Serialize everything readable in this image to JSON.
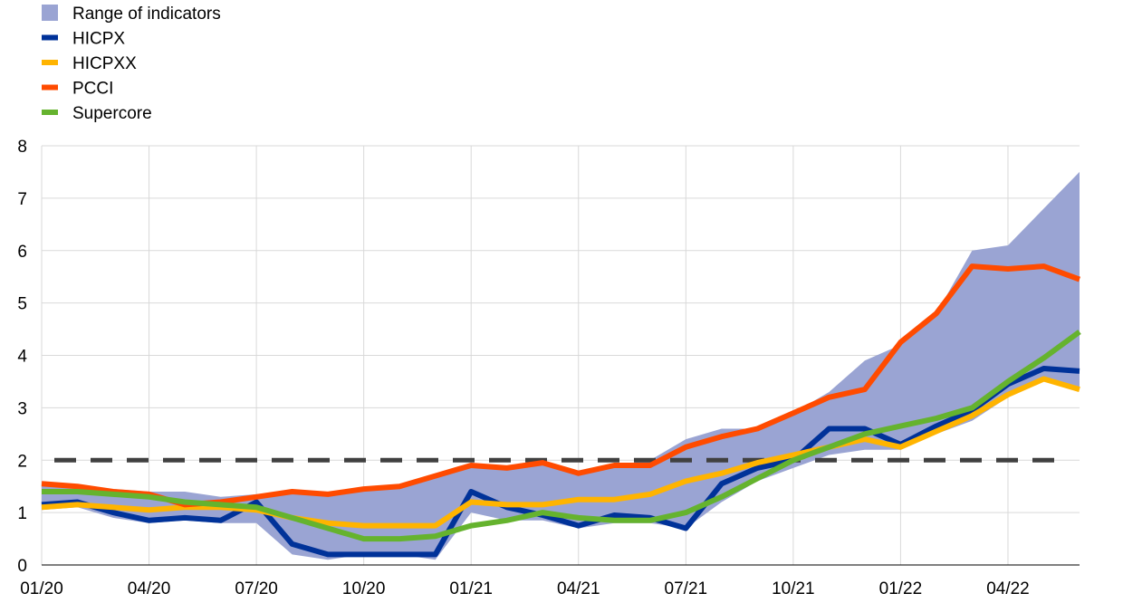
{
  "chart_data": {
    "type": "line",
    "title": "",
    "xlabel": "",
    "ylabel": "",
    "ylim": [
      0,
      8
    ],
    "yticks": [
      0,
      1,
      2,
      3,
      4,
      5,
      6,
      7,
      8
    ],
    "grid": true,
    "legend_position": "top-left",
    "x": [
      "01/20",
      "02/20",
      "03/20",
      "04/20",
      "05/20",
      "06/20",
      "07/20",
      "08/20",
      "09/20",
      "10/20",
      "11/20",
      "12/20",
      "01/21",
      "02/21",
      "03/21",
      "04/21",
      "05/21",
      "06/21",
      "07/21",
      "08/21",
      "09/21",
      "10/21",
      "11/21",
      "12/21",
      "01/22",
      "02/22",
      "03/22",
      "04/22",
      "05/22",
      "06/22"
    ],
    "xtick_labels": [
      "01/20",
      "04/20",
      "07/20",
      "10/20",
      "01/21",
      "04/21",
      "07/21",
      "10/21",
      "01/22",
      "04/22"
    ],
    "xtick_indices": [
      0,
      3,
      6,
      9,
      12,
      15,
      18,
      21,
      24,
      27
    ],
    "range": {
      "name": "Range of indicators",
      "color": "#9aa4d3",
      "low": [
        1.05,
        1.1,
        0.9,
        0.8,
        0.85,
        0.8,
        0.8,
        0.2,
        0.1,
        0.2,
        0.2,
        0.1,
        1.0,
        0.85,
        0.85,
        0.7,
        0.8,
        0.8,
        0.7,
        1.2,
        1.6,
        1.85,
        2.1,
        2.2,
        2.2,
        2.5,
        2.75,
        3.2,
        3.5,
        3.35
      ],
      "high": [
        1.55,
        1.5,
        1.45,
        1.4,
        1.4,
        1.3,
        1.35,
        1.4,
        1.35,
        1.45,
        1.5,
        1.7,
        1.9,
        1.85,
        1.95,
        1.75,
        1.9,
        2.0,
        2.4,
        2.6,
        2.6,
        2.9,
        3.3,
        3.9,
        4.2,
        4.8,
        6.0,
        6.1,
        6.8,
        7.5
      ]
    },
    "series": [
      {
        "name": "HICPX",
        "color": "#003299",
        "values": [
          1.15,
          1.2,
          1.0,
          0.85,
          0.9,
          0.85,
          1.2,
          0.4,
          0.2,
          0.2,
          0.2,
          0.2,
          1.4,
          1.1,
          0.95,
          0.75,
          0.95,
          0.9,
          0.7,
          1.55,
          1.85,
          2.0,
          2.6,
          2.6,
          2.3,
          2.65,
          2.95,
          3.45,
          3.75,
          3.7
        ]
      },
      {
        "name": "HICPXX",
        "color": "#ffb400",
        "values": [
          1.1,
          1.15,
          1.1,
          1.05,
          1.1,
          1.1,
          1.05,
          0.9,
          0.8,
          0.75,
          0.75,
          0.75,
          1.2,
          1.15,
          1.15,
          1.25,
          1.25,
          1.35,
          1.6,
          1.75,
          1.95,
          2.1,
          2.25,
          2.4,
          2.25,
          2.55,
          2.85,
          3.25,
          3.55,
          3.35
        ]
      },
      {
        "name": "PCCI",
        "color": "#ff4b00",
        "values": [
          1.55,
          1.5,
          1.4,
          1.35,
          1.15,
          1.2,
          1.3,
          1.4,
          1.35,
          1.45,
          1.5,
          1.7,
          1.9,
          1.85,
          1.95,
          1.75,
          1.9,
          1.9,
          2.25,
          2.45,
          2.6,
          2.9,
          3.2,
          3.35,
          4.25,
          4.8,
          5.7,
          5.65,
          5.7,
          5.45
        ]
      },
      {
        "name": "Supercore",
        "color": "#65b32e",
        "values": [
          1.4,
          1.4,
          1.35,
          1.3,
          1.2,
          1.15,
          1.1,
          0.9,
          0.7,
          0.5,
          0.5,
          0.55,
          0.75,
          0.85,
          1.0,
          0.9,
          0.85,
          0.85,
          1.0,
          1.3,
          1.65,
          2.0,
          2.25,
          2.5,
          2.65,
          2.8,
          3.0,
          3.5,
          3.95,
          4.45
        ]
      }
    ],
    "reference_line": {
      "value": 2,
      "color": "#404040",
      "dashed": true
    }
  }
}
